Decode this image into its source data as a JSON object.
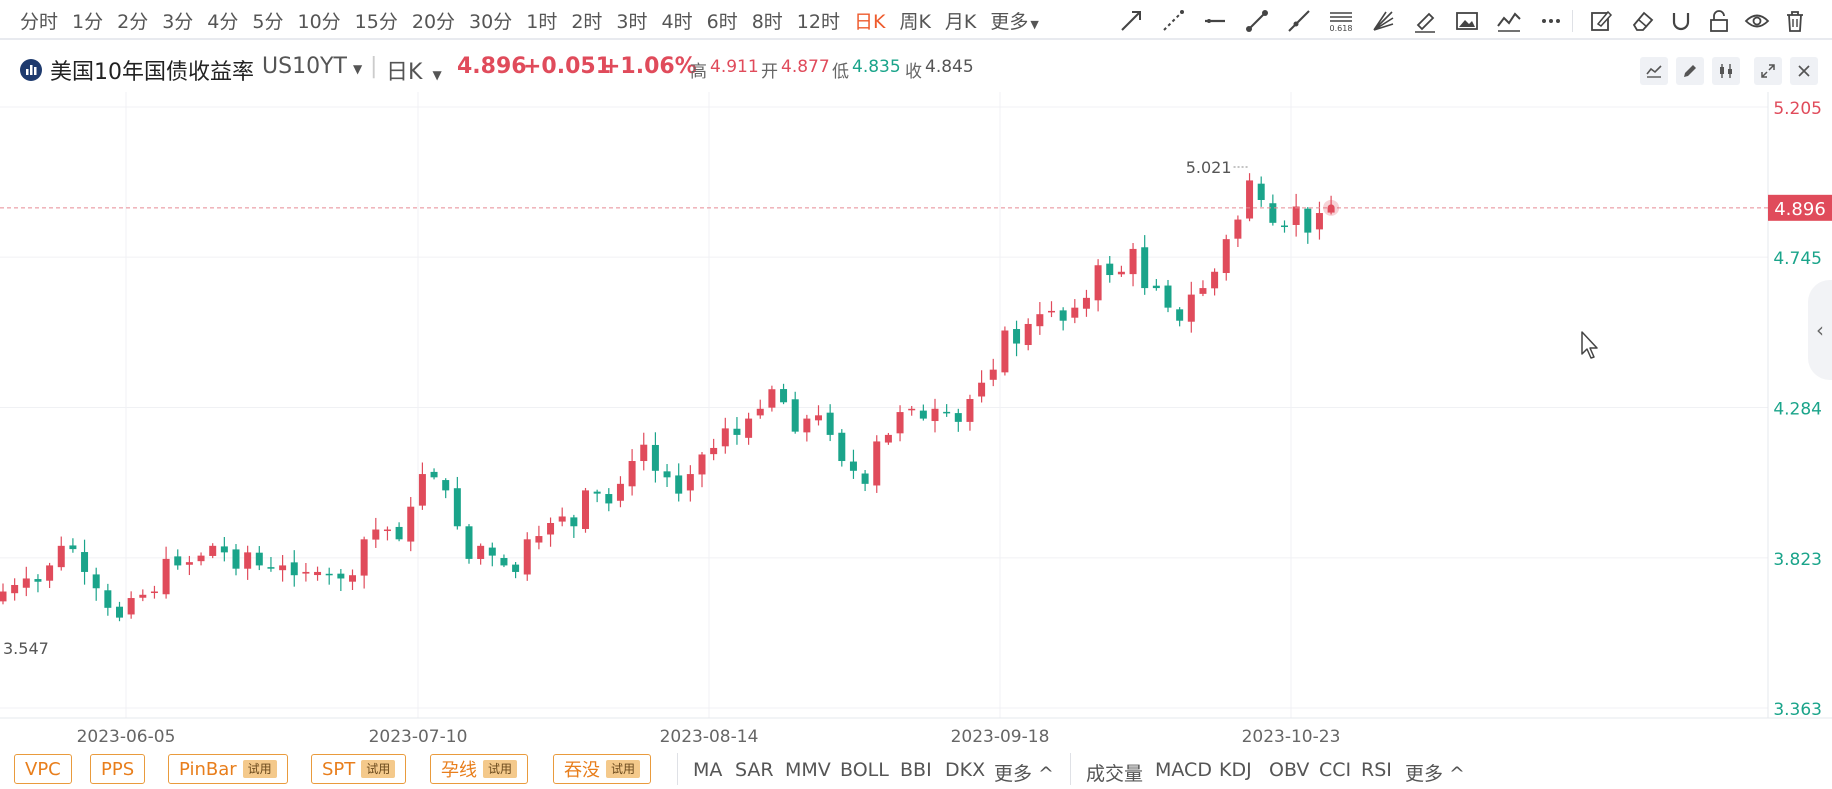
{
  "toolbar": {
    "periods": [
      {
        "label": "分时"
      },
      {
        "label": "1分"
      },
      {
        "label": "2分"
      },
      {
        "label": "3分"
      },
      {
        "label": "4分"
      },
      {
        "label": "5分"
      },
      {
        "label": "10分"
      },
      {
        "label": "15分"
      },
      {
        "label": "20分"
      },
      {
        "label": "30分"
      },
      {
        "label": "1时"
      },
      {
        "label": "2时"
      },
      {
        "label": "3时"
      },
      {
        "label": "4时"
      },
      {
        "label": "6时"
      },
      {
        "label": "8时"
      },
      {
        "label": "12时"
      },
      {
        "label": "日K",
        "active": true
      },
      {
        "label": "周K"
      },
      {
        "label": "月K"
      },
      {
        "label": "更多"
      }
    ],
    "fib_label": "0.618",
    "tools": [
      "ray-arrow-icon",
      "dashed-line-icon",
      "horizontal-line-icon",
      "segment-icon",
      "extended-line-icon",
      "fibonacci-icon",
      "fan-icon",
      "highlighter-icon",
      "image-icon",
      "wave-icon",
      "more-dots-icon",
      "edit-icon",
      "eraser-icon",
      "magnet-icon",
      "lock-icon",
      "eye-icon",
      "trash-icon"
    ]
  },
  "info": {
    "name": "美国10年国债收益率",
    "symbol": "US10YT",
    "period": "日K",
    "price": "4.896",
    "change": "+0.051",
    "change_pct": "+1.06%",
    "high_label": "高",
    "high": "4.911",
    "open_label": "开",
    "open": "4.877",
    "low_label": "低",
    "low": "4.835",
    "close_label": "收",
    "close": "4.845",
    "up_color": "#e04b5b",
    "down_color": "#1aa48a"
  },
  "chart_data": {
    "type": "candlestick",
    "x_labels": [
      "2023-06-05",
      "2023-07-10",
      "2023-08-14",
      "2023-09-18",
      "2023-10-23"
    ],
    "y_ticks": [
      "5.205",
      "4.745",
      "4.284",
      "3.823",
      "3.363"
    ],
    "ylim": [
      3.363,
      5.205
    ],
    "current_price": "4.896",
    "max_marker": "5.021",
    "min_marker": "3.547",
    "closes": [
      3.72,
      3.74,
      3.76,
      3.75,
      3.8,
      3.86,
      3.85,
      3.78,
      3.73,
      3.67,
      3.64,
      3.7,
      3.71,
      3.72,
      3.82,
      3.8,
      3.81,
      3.83,
      3.86,
      3.84,
      3.79,
      3.84,
      3.8,
      3.79,
      3.8,
      3.77,
      3.78,
      3.78,
      3.77,
      3.76,
      3.77,
      3.88,
      3.91,
      3.91,
      3.88,
      3.98,
      4.08,
      4.07,
      4.03,
      3.92,
      3.82,
      3.86,
      3.83,
      3.8,
      3.78,
      3.88,
      3.89,
      3.93,
      3.95,
      3.92,
      4.03,
      4.02,
      3.99,
      4.05,
      4.12,
      4.17,
      4.09,
      4.07,
      4.02,
      4.08,
      4.14,
      4.16,
      4.22,
      4.2,
      4.25,
      4.28,
      4.34,
      4.3,
      4.21,
      4.25,
      4.26,
      4.2,
      4.12,
      4.09,
      4.05,
      4.18,
      4.2,
      4.27,
      4.28,
      4.25,
      4.28,
      4.27,
      4.24,
      4.31,
      4.36,
      4.4,
      4.52,
      4.48,
      4.54,
      4.57,
      4.58,
      4.55,
      4.59,
      4.62,
      4.72,
      4.69,
      4.7,
      4.77,
      4.65,
      4.65,
      4.59,
      4.55,
      4.63,
      4.65,
      4.7,
      4.8,
      4.86,
      4.98,
      4.92,
      4.85,
      4.84,
      4.9,
      4.82,
      4.88,
      4.896
    ],
    "grid": true
  },
  "bottom": {
    "tags": [
      {
        "label": "VPC",
        "trial": ""
      },
      {
        "label": "PPS",
        "trial": ""
      },
      {
        "label": "PinBar",
        "trial": "试用"
      },
      {
        "label": "SPT",
        "trial": "试用"
      },
      {
        "label": "孕线",
        "trial": "试用"
      },
      {
        "label": "吞没",
        "trial": "试用"
      }
    ],
    "main_indicators": [
      "MA",
      "SAR",
      "MMV",
      "BOLL",
      "BBI",
      "DKX",
      "更多 ^"
    ],
    "sub_indicators": [
      "成交量",
      "MACD",
      "KDJ",
      "OBV",
      "CCI",
      "RSI",
      "更多 ^"
    ]
  }
}
